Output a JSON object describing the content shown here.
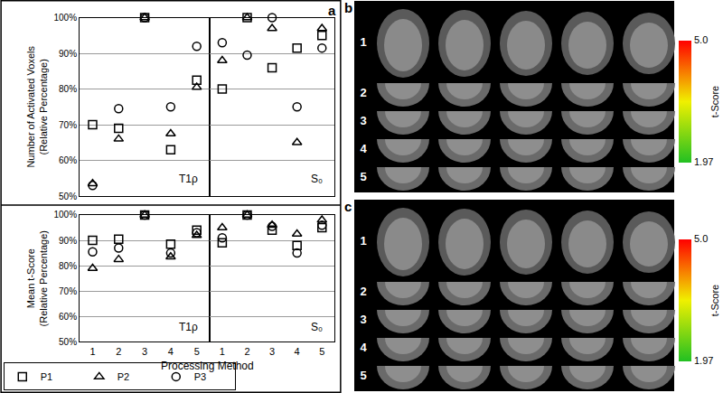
{
  "figure": {
    "panel_labels": [
      "a",
      "b",
      "c"
    ]
  },
  "chart_data": [
    {
      "type": "scatter",
      "ylabel": "Number of Activated Voxels (Relative Percentage)",
      "annotation": "T1ρ",
      "x": [
        1,
        2,
        3,
        4,
        5
      ],
      "xlim": [
        0.5,
        5.5
      ],
      "xticks": [
        1,
        2,
        3,
        4,
        5
      ],
      "ylim": [
        50,
        100
      ],
      "yticks": [
        {
          "value": 50,
          "label": "50%"
        },
        {
          "value": 60,
          "label": "60%"
        },
        {
          "value": 70,
          "label": "70%"
        },
        {
          "value": 80,
          "label": "80%"
        },
        {
          "value": 90,
          "label": "90%"
        },
        {
          "value": 100,
          "label": "100%"
        }
      ],
      "grid": true,
      "tick_labels": "y",
      "series": [
        {
          "name": "P1",
          "marker": "square",
          "color": "#000000",
          "values": [
            70,
            69,
            100,
            63,
            82.5
          ]
        },
        {
          "name": "P2",
          "marker": "triangle",
          "color": "#000000",
          "values": [
            53.5,
            66,
            100,
            67.5,
            80.5
          ]
        },
        {
          "name": "P3",
          "marker": "circle",
          "color": "#000000",
          "values": [
            53,
            74.5,
            100,
            75,
            92
          ]
        }
      ]
    },
    {
      "type": "scatter",
      "annotation": "S₀",
      "x": [
        1,
        2,
        3,
        4,
        5
      ],
      "xlim": [
        0.5,
        5.5
      ],
      "xticks": [
        1,
        2,
        3,
        4,
        5
      ],
      "ylim": [
        50,
        100
      ],
      "yticks": [
        {
          "value": 50,
          "label": "50%"
        },
        {
          "value": 60,
          "label": "60%"
        },
        {
          "value": 70,
          "label": "70%"
        },
        {
          "value": 80,
          "label": "80%"
        },
        {
          "value": 90,
          "label": "90%"
        },
        {
          "value": 100,
          "label": "100%"
        }
      ],
      "grid": true,
      "tick_labels": false,
      "series": [
        {
          "name": "P1",
          "marker": "square",
          "color": "#000000",
          "values": [
            80,
            100,
            86,
            91.5,
            95
          ]
        },
        {
          "name": "P2",
          "marker": "triangle",
          "color": "#000000",
          "values": [
            88,
            100,
            97,
            65,
            97
          ]
        },
        {
          "name": "P3",
          "marker": "circle",
          "color": "#000000",
          "values": [
            93,
            89.5,
            100,
            75,
            91.5
          ]
        }
      ]
    },
    {
      "type": "scatter",
      "ylabel": "Mean t-Score (Relative Percentage)",
      "xlabel": "Processing Method",
      "annotation": "T1ρ",
      "x": [
        1,
        2,
        3,
        4,
        5
      ],
      "xlim": [
        0.5,
        5.5
      ],
      "xticks": [
        1,
        2,
        3,
        4,
        5
      ],
      "ylim": [
        50,
        100
      ],
      "yticks": [
        {
          "value": 50,
          "label": "50%"
        },
        {
          "value": 60,
          "label": "60%"
        },
        {
          "value": 70,
          "label": "70%"
        },
        {
          "value": 80,
          "label": "80%"
        },
        {
          "value": 90,
          "label": "90%"
        },
        {
          "value": 100,
          "label": "100%"
        }
      ],
      "grid": true,
      "tick_labels": true,
      "legend": "lower left",
      "series": [
        {
          "name": "P1",
          "marker": "square",
          "color": "#000000",
          "values": [
            90,
            90.5,
            100,
            88.5,
            94
          ]
        },
        {
          "name": "P2",
          "marker": "triangle",
          "color": "#000000",
          "values": [
            79,
            82.5,
            100,
            83.5,
            92
          ]
        },
        {
          "name": "P3",
          "marker": "circle",
          "color": "#000000",
          "values": [
            85.5,
            87,
            100,
            85,
            93
          ]
        }
      ]
    },
    {
      "type": "scatter",
      "annotation": "S₀",
      "x": [
        1,
        2,
        3,
        4,
        5
      ],
      "xlim": [
        0.5,
        5.5
      ],
      "xticks": [
        1,
        2,
        3,
        4,
        5
      ],
      "ylim": [
        50,
        100
      ],
      "yticks": [
        {
          "value": 50,
          "label": "50%"
        },
        {
          "value": 60,
          "label": "60%"
        },
        {
          "value": 70,
          "label": "70%"
        },
        {
          "value": 80,
          "label": "80%"
        },
        {
          "value": 90,
          "label": "90%"
        },
        {
          "value": 100,
          "label": "100%"
        }
      ],
      "grid": true,
      "tick_labels": "x",
      "series": [
        {
          "name": "P1",
          "marker": "square",
          "color": "#000000",
          "values": [
            89,
            100,
            94,
            88,
            95
          ]
        },
        {
          "name": "P2",
          "marker": "triangle",
          "color": "#000000",
          "values": [
            95,
            100,
            96,
            92.5,
            98
          ]
        },
        {
          "name": "P3",
          "marker": "circle",
          "color": "#000000",
          "values": [
            91,
            100,
            95.5,
            85,
            96
          ]
        }
      ]
    }
  ],
  "images": [
    {
      "rows": [
        "1",
        "2",
        "3",
        "4",
        "5"
      ],
      "colorbar": {
        "title": "t-Score",
        "range": [
          1.97,
          5.0
        ],
        "ticks": [
          {
            "value": 5,
            "label": "5.0"
          },
          1.97
        ]
      }
    },
    {
      "rows": [
        "1",
        "2",
        "3",
        "4",
        "5"
      ],
      "colorbar": {
        "title": "t-Score",
        "range": [
          1.97,
          5.0
        ],
        "ticks": [
          {
            "value": 5,
            "label": "5.0"
          },
          1.97
        ]
      }
    }
  ]
}
